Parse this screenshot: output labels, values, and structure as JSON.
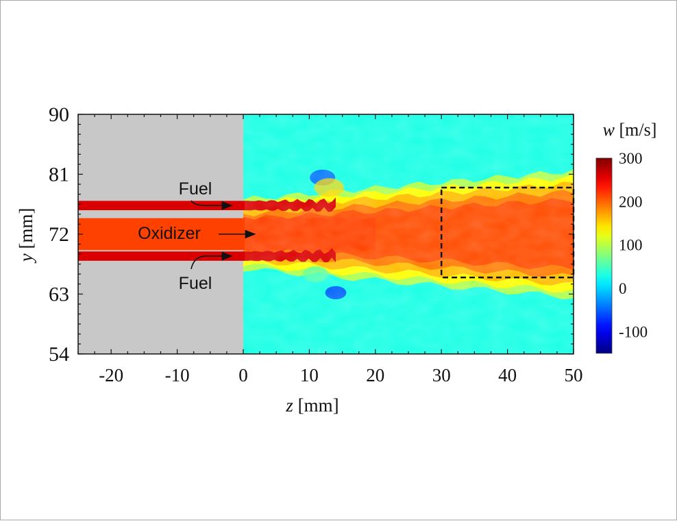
{
  "chart_data": {
    "type": "heatmap",
    "title": "",
    "xlabel": {
      "var": "z",
      "unit": "[mm]"
    },
    "ylabel": {
      "var": "y",
      "unit": "[mm]"
    },
    "xlim": [
      -25,
      50
    ],
    "ylim": [
      54,
      90
    ],
    "x_ticks": [
      -20,
      -10,
      0,
      10,
      20,
      30,
      40,
      50
    ],
    "y_ticks": [
      54,
      63,
      72,
      81,
      90
    ],
    "colorbar": {
      "var": "w",
      "unit": "[m/s]",
      "range": [
        -150,
        300
      ],
      "ticks": [
        300,
        200,
        100,
        0,
        -100
      ],
      "colormap": "jet"
    },
    "solid_region": {
      "z_range": [
        -25,
        0
      ],
      "color": "#c8c8c8"
    },
    "background_value": 30,
    "streams": [
      {
        "name": "Fuel",
        "kind": "fuel",
        "y_center": 76.3,
        "half_width": 0.7,
        "value": 260,
        "z_end_intact": 0
      },
      {
        "name": "Oxidizer",
        "kind": "oxidizer",
        "y_center": 72.0,
        "half_width": 2.4,
        "value": 215,
        "z_end_intact": 0
      },
      {
        "name": "Fuel",
        "kind": "fuel",
        "y_center": 68.7,
        "half_width": 0.7,
        "value": 260,
        "z_end_intact": 0
      }
    ],
    "annotations": [
      {
        "text": "Fuel",
        "target": "upper-fuel"
      },
      {
        "text": "Oxidizer",
        "target": "oxidizer"
      },
      {
        "text": "Fuel",
        "target": "lower-fuel"
      }
    ],
    "highlight_box": {
      "z_range": [
        30,
        50
      ],
      "y_range": [
        65.5,
        79
      ],
      "style": "dashed"
    }
  }
}
